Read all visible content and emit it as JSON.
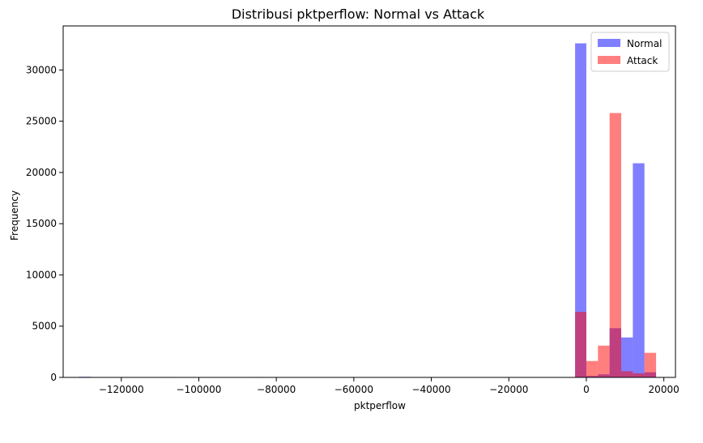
{
  "chart_data": {
    "type": "histogram",
    "title": "Distribusi pktperflow: Normal vs Attack",
    "xlabel": "pktperflow",
    "ylabel": "Frequency",
    "xlim": [
      -135000,
      23000
    ],
    "ylim": [
      0,
      34300
    ],
    "xticks": [
      -120000,
      -100000,
      -80000,
      -60000,
      -40000,
      -20000,
      0,
      20000
    ],
    "xtick_labels": [
      "−120000",
      "−100000",
      "−80000",
      "−60000",
      "−40000",
      "−20000",
      "0",
      "20000"
    ],
    "yticks": [
      0,
      5000,
      10000,
      15000,
      20000,
      25000,
      30000
    ],
    "ytick_labels": [
      "0",
      "5000",
      "10000",
      "15000",
      "20000",
      "25000",
      "30000"
    ],
    "legend": {
      "position": "top-right"
    },
    "series": [
      {
        "name": "Normal",
        "color": "#0000ff",
        "opacity": 0.5,
        "bins": [
          {
            "x0": -131000,
            "x1": -127800,
            "y": 60
          },
          {
            "x0": -2900,
            "x1": 0,
            "y": 32600
          },
          {
            "x0": 0,
            "x1": 3000,
            "y": 150
          },
          {
            "x0": 3000,
            "x1": 6000,
            "y": 300
          },
          {
            "x0": 6000,
            "x1": 9000,
            "y": 4800
          },
          {
            "x0": 9000,
            "x1": 12000,
            "y": 3900
          },
          {
            "x0": 12000,
            "x1": 15000,
            "y": 20900
          },
          {
            "x0": 15000,
            "x1": 18000,
            "y": 500
          }
        ]
      },
      {
        "name": "Attack",
        "color": "#ff0000",
        "opacity": 0.5,
        "bins": [
          {
            "x0": -130000,
            "x1": -127000,
            "y": 40
          },
          {
            "x0": -110000,
            "x1": -107000,
            "y": 40
          },
          {
            "x0": -86000,
            "x1": -83000,
            "y": 40
          },
          {
            "x0": -2900,
            "x1": 0,
            "y": 6400
          },
          {
            "x0": 0,
            "x1": 3000,
            "y": 1600
          },
          {
            "x0": 3000,
            "x1": 6000,
            "y": 3100
          },
          {
            "x0": 6000,
            "x1": 9000,
            "y": 25800
          },
          {
            "x0": 9000,
            "x1": 12000,
            "y": 600
          },
          {
            "x0": 12000,
            "x1": 15000,
            "y": 400
          },
          {
            "x0": 15000,
            "x1": 18000,
            "y": 2400
          }
        ]
      }
    ]
  }
}
